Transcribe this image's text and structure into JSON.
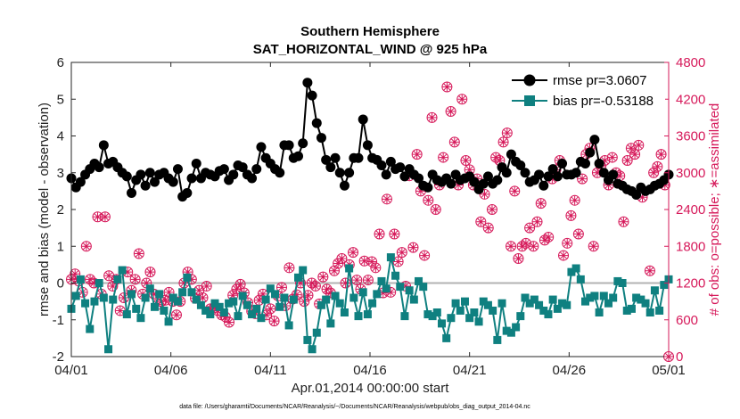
{
  "chart_data": {
    "type": "line",
    "title_line1": "Southern Hemisphere",
    "title_line2": "SAT_HORIZONTAL_WIND @ 925 hPa",
    "xlabel": "Apr.01,2014 00:00:00 start",
    "ylabel_left": "rmse and bias (model - observation)",
    "ylabel_right": "# of obs: o=possible; ∗=assimilated",
    "footnote": "data file: /Users/gharamti/Documents/NCAR/Reanalysis/~/Documents/NCAR/Reanalysis/webpub/obs_diag_output_2014-04.nc",
    "xlim": [
      0,
      30
    ],
    "ylim_left": [
      -2,
      6
    ],
    "ylim_right": [
      0,
      4800
    ],
    "x_ticks": [
      0,
      5,
      10,
      15,
      20,
      25,
      30
    ],
    "x_tick_labels": [
      "04/01",
      "04/06",
      "04/11",
      "04/16",
      "04/21",
      "04/26",
      "05/01"
    ],
    "y_ticks_left": [
      "-2",
      "-1",
      "0",
      "1",
      "2",
      "3",
      "4",
      "5",
      "6"
    ],
    "y_ticks_right": [
      "0",
      "600",
      "1200",
      "1800",
      "2400",
      "3000",
      "3600",
      "4200",
      "4800"
    ],
    "zero_line": 0,
    "legend_position": "top-right",
    "colors": {
      "rmse": "#000000",
      "bias": "#0f8080",
      "obs": "#d6195a",
      "zero": "#b3b3b3"
    },
    "series": [
      {
        "name": "rmse pr=3.0607",
        "values": [
          2.85,
          2.6,
          2.75,
          2.95,
          3.1,
          3.25,
          3.15,
          3.75,
          3.25,
          3.3,
          3.15,
          3.0,
          2.9,
          2.45,
          2.8,
          2.95,
          2.65,
          3.0,
          2.75,
          2.95,
          3.0,
          2.85,
          2.75,
          3.1,
          2.35,
          2.45,
          2.85,
          3.25,
          2.85,
          3.0,
          2.95,
          2.9,
          3.05,
          3.1,
          2.8,
          2.95,
          3.2,
          3.15,
          2.95,
          2.85,
          3.1,
          3.7,
          3.4,
          3.25,
          3.1,
          3.0,
          3.75,
          3.75,
          3.4,
          3.45,
          3.8,
          5.45,
          5.1,
          4.35,
          3.95,
          3.35,
          3.15,
          3.4,
          3.0,
          2.65,
          3.0,
          3.4,
          3.4,
          4.45,
          3.75,
          3.4,
          3.35,
          3.2,
          2.95,
          3.3,
          3.1,
          3.15,
          2.9,
          3.1,
          2.95,
          2.85,
          2.65,
          2.6,
          2.95,
          2.8,
          2.75,
          2.85,
          2.7,
          2.95,
          2.8,
          2.85,
          2.9,
          2.75,
          2.55,
          2.7,
          2.9,
          2.7,
          2.8,
          3.15,
          3.0,
          3.5,
          3.3,
          3.2,
          3.0,
          2.75,
          2.8,
          2.95,
          2.65,
          2.9,
          3.1,
          2.9,
          3.25,
          2.95,
          2.95,
          3.0,
          3.3,
          3.25,
          3.55,
          3.9,
          3.25,
          3.0,
          2.8,
          2.95,
          2.7,
          2.65,
          2.55,
          2.5,
          2.4,
          2.6,
          2.5,
          2.55,
          2.65,
          2.7,
          2.8,
          2.95
        ]
      },
      {
        "name": "bias pr=-0.53188",
        "values": [
          -0.7,
          -0.35,
          0.1,
          -0.55,
          -1.25,
          -0.5,
          0.0,
          -0.4,
          -1.8,
          -0.45,
          0.1,
          0.35,
          -0.85,
          -0.3,
          -0.7,
          -0.95,
          -0.4,
          -0.15,
          -0.65,
          -0.3,
          -0.75,
          -1.05,
          -0.4,
          -0.5,
          -0.25,
          0.15,
          -0.25,
          -0.45,
          -0.6,
          -0.75,
          -0.85,
          -0.55,
          -0.65,
          -0.8,
          -0.55,
          -0.5,
          -0.9,
          -0.35,
          -0.6,
          -0.85,
          -0.7,
          -0.95,
          -0.45,
          -0.15,
          -0.3,
          -0.65,
          -0.4,
          -1.15,
          -0.45,
          0.15,
          0.35,
          -1.55,
          -1.8,
          -1.35,
          -0.6,
          -0.45,
          -1.1,
          -0.35,
          -0.55,
          -0.8,
          0.4,
          -0.4,
          -0.9,
          -0.25,
          -0.85,
          -0.55,
          -0.3,
          0.05,
          -0.15,
          0.7,
          0.2,
          -0.1,
          -0.9,
          -0.2,
          -0.45,
          0.05,
          -0.1,
          -0.85,
          -0.9,
          -0.8,
          -1.1,
          -1.5,
          -0.95,
          -0.55,
          -0.75,
          -0.5,
          -0.95,
          -0.8,
          -1.05,
          -0.5,
          -0.6,
          -0.75,
          -1.55,
          -0.55,
          -1.3,
          -1.35,
          -1.2,
          -0.9,
          -0.4,
          -0.55,
          -0.45,
          -0.6,
          -0.75,
          -0.85,
          -0.45,
          -0.7,
          -0.55,
          -0.6,
          0.3,
          0.4,
          0.1,
          -0.5,
          -0.4,
          -0.35,
          -0.8,
          -0.35,
          -0.55,
          -0.4,
          0.05,
          0.0,
          -0.75,
          -0.7,
          -0.4,
          -0.45,
          -0.55,
          -0.8,
          -0.2,
          -0.75,
          -0.05,
          0.1
        ]
      },
      {
        "name": "possible",
        "values": [
          1260,
          1350,
          1230,
          1050,
          1800,
          1260,
          1200,
          2280,
          1020,
          2280,
          1320,
          1150,
          1260,
          750,
          960,
          1380,
          1080,
          1260,
          1680,
          1020,
          1200,
          1380,
          1020,
          850,
          900,
          920,
          1050,
          900,
          680,
          900,
          1200,
          1380,
          1260,
          950,
          1080,
          960,
          1150,
          780,
          800,
          750,
          680,
          650,
          560,
          1000,
          1100,
          1180,
          1040,
          880,
          740,
          700,
          920,
          1020,
          680,
          780,
          580,
          990,
          1130,
          830,
          1450,
          940,
          1010,
          1200,
          900,
          1000,
          1200,
          1150,
          860,
          1300,
          1100,
          1040,
          1400,
          1520,
          1600,
          1200,
          1500,
          1700,
          1250,
          1100,
          1560,
          1250,
          1550,
          1450,
          2000,
          1040,
          2570,
          1050,
          2000,
          1550,
          1700,
          1150,
          2950,
          1780,
          3300,
          2700,
          1650,
          2550,
          3900,
          2400,
          2800,
          3250,
          4400,
          4000,
          3500,
          2800,
          4200,
          3200,
          3050,
          2800,
          2900,
          2200,
          2650,
          2100,
          2400,
          3250,
          3200,
          3500,
          3650,
          1800,
          2700,
          1600,
          1800,
          1850,
          2100,
          1800,
          2200,
          2500,
          1900,
          1950,
          2900,
          3050,
          3200,
          1650,
          1850,
          2300,
          2550,
          2000,
          2900,
          3300,
          3400,
          1800,
          3000,
          3100,
          3200,
          2800,
          3250,
          3000,
          2950,
          2200,
          3200,
          3400,
          3300,
          3450,
          2600,
          4150,
          1400,
          3000,
          3100,
          3300,
          2800,
          0
        ]
      }
    ]
  }
}
